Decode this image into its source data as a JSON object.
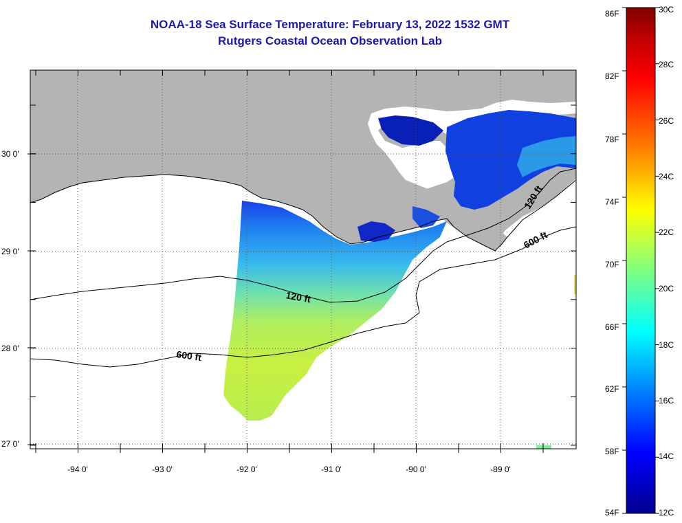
{
  "title": {
    "line1": "NOAA-18 Sea Surface Temperature:  February 13, 2022 1532 GMT",
    "line2": "Rutgers Coastal Ocean Observation Lab"
  },
  "map": {
    "lon_ticks": [
      "-94 0'",
      "-93 0'",
      "-92 0'",
      "-91 0'",
      "-90 0'",
      "-89 0'"
    ],
    "lat_ticks": [
      "30 0'",
      "29 0'",
      "28 0'",
      "27 0'"
    ],
    "contour_labels": [
      "120 ft",
      "600 ft",
      "120 ft",
      "600 ft"
    ],
    "land_color": "#b4b4b4",
    "grid": "dotted"
  },
  "colorbar": {
    "f_labels": [
      "86F",
      "82F",
      "78F",
      "74F",
      "70F",
      "66F",
      "62F",
      "58F",
      "54F"
    ],
    "c_labels": [
      "30C",
      "28C",
      "26C",
      "24C",
      "22C",
      "20C",
      "18C",
      "16C",
      "14C",
      "12C"
    ],
    "colors_top_to_bottom": [
      "#7f0000",
      "#ff0000",
      "#ff8000",
      "#ffff00",
      "#80ff80",
      "#00ffff",
      "#0080ff",
      "#0000ff",
      "#00008f"
    ]
  }
}
